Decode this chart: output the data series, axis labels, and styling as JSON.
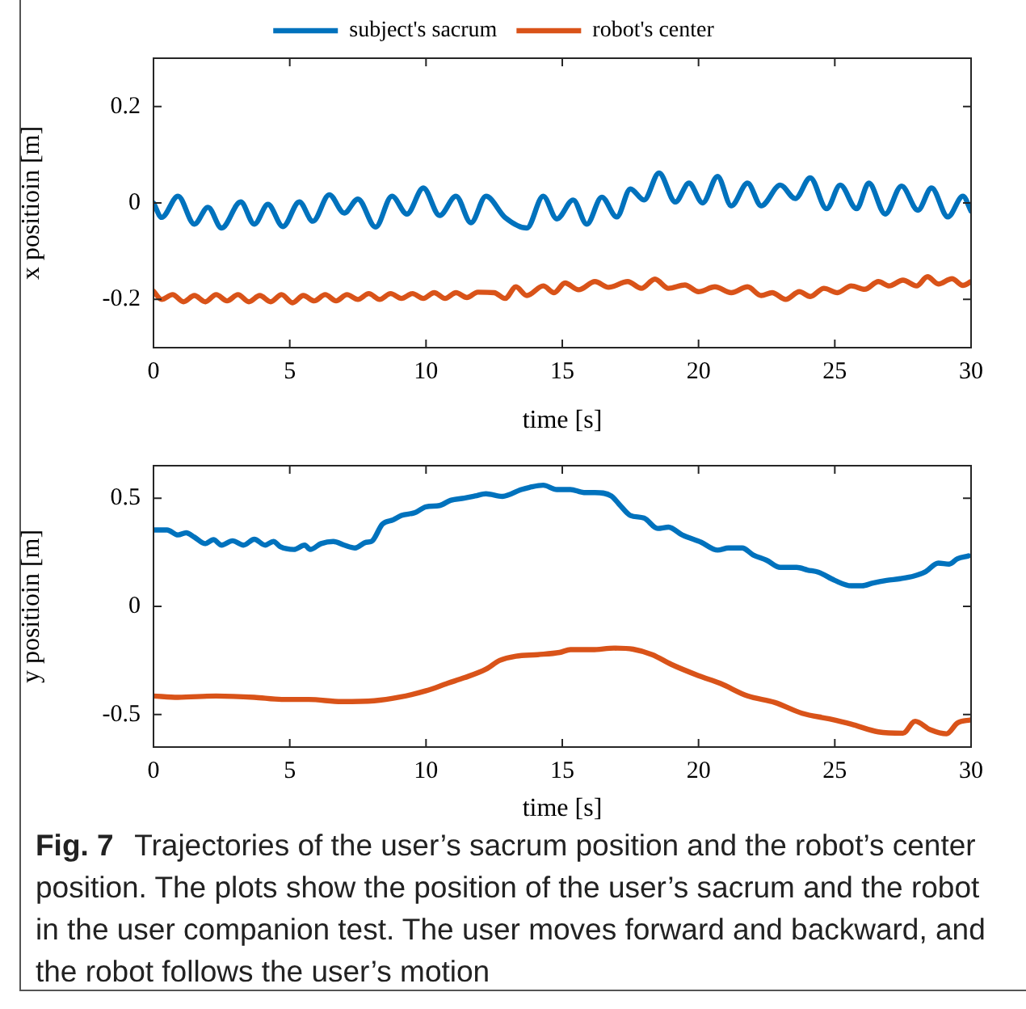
{
  "chart_data": [
    {
      "type": "line",
      "xlabel": "time [s]",
      "ylabel": "x positioin [m]",
      "xlim": [
        0,
        30
      ],
      "xticks": [
        0,
        5,
        10,
        15,
        20,
        25,
        30
      ],
      "ylim": [
        -0.3,
        0.3
      ],
      "yticks": [
        -0.2,
        0,
        0.2
      ],
      "grid": false,
      "legend": "top",
      "marker": "none",
      "line_style": "solid",
      "series": [
        {
          "name": "subject's sacrum",
          "color": "#0072bd",
          "x": [
            0,
            0.3,
            0.9,
            1.5,
            2.0,
            2.5,
            3.2,
            3.7,
            4.2,
            4.75,
            5.35,
            5.85,
            6.45,
            7.0,
            7.5,
            8.15,
            8.75,
            9.3,
            9.9,
            10.5,
            11.1,
            11.65,
            12.2,
            12.9,
            13.7,
            14.3,
            14.8,
            15.4,
            15.9,
            16.45,
            17.0,
            17.5,
            18.0,
            18.55,
            19.15,
            19.65,
            20.15,
            20.7,
            21.2,
            21.8,
            22.3,
            23.0,
            23.55,
            24.1,
            24.7,
            25.2,
            25.8,
            26.25,
            26.85,
            27.45,
            28.05,
            28.55,
            29.15,
            29.7,
            30
          ],
          "values": [
            0,
            -0.03,
            0.014,
            -0.044,
            -0.009,
            -0.052,
            0.002,
            -0.044,
            -0.003,
            -0.049,
            0.002,
            -0.038,
            0.017,
            -0.021,
            0.008,
            -0.05,
            0.014,
            -0.023,
            0.031,
            -0.026,
            0.014,
            -0.041,
            0.014,
            -0.03,
            -0.052,
            0.014,
            -0.033,
            0.006,
            -0.044,
            0.012,
            -0.029,
            0.029,
            0.006,
            0.062,
            0.002,
            0.041,
            0,
            0.055,
            -0.006,
            0.041,
            -0.006,
            0.037,
            0.009,
            0.052,
            -0.012,
            0.037,
            -0.012,
            0.041,
            -0.023,
            0.035,
            -0.015,
            0.031,
            -0.029,
            0.014,
            -0.017
          ]
        },
        {
          "name": "robot's center",
          "color": "#d95319",
          "x": [
            0,
            0.3,
            0.7,
            1.1,
            1.5,
            1.9,
            2.3,
            2.7,
            3.1,
            3.5,
            3.9,
            4.3,
            4.7,
            5.1,
            5.5,
            5.9,
            6.3,
            6.7,
            7.1,
            7.5,
            7.9,
            8.3,
            8.7,
            9.1,
            9.5,
            9.9,
            10.3,
            10.7,
            11.1,
            11.5,
            11.9,
            12.5,
            12.9,
            13.3,
            13.7,
            14.3,
            14.7,
            15.1,
            15.6,
            16.2,
            16.7,
            17.4,
            17.9,
            18.4,
            18.9,
            19.5,
            20.0,
            20.6,
            21.2,
            21.8,
            22.3,
            22.7,
            23.2,
            23.7,
            24.1,
            24.6,
            25.1,
            25.6,
            26.1,
            26.6,
            27.0,
            27.5,
            28.0,
            28.4,
            28.8,
            29.3,
            29.7,
            30
          ],
          "values": [
            -0.183,
            -0.2,
            -0.19,
            -0.205,
            -0.192,
            -0.205,
            -0.19,
            -0.203,
            -0.19,
            -0.205,
            -0.192,
            -0.205,
            -0.19,
            -0.207,
            -0.192,
            -0.203,
            -0.19,
            -0.203,
            -0.19,
            -0.2,
            -0.188,
            -0.2,
            -0.188,
            -0.198,
            -0.188,
            -0.198,
            -0.186,
            -0.198,
            -0.186,
            -0.196,
            -0.185,
            -0.186,
            -0.198,
            -0.174,
            -0.192,
            -0.172,
            -0.186,
            -0.166,
            -0.18,
            -0.163,
            -0.175,
            -0.163,
            -0.177,
            -0.158,
            -0.177,
            -0.17,
            -0.184,
            -0.174,
            -0.186,
            -0.174,
            -0.192,
            -0.186,
            -0.2,
            -0.184,
            -0.194,
            -0.177,
            -0.186,
            -0.172,
            -0.179,
            -0.163,
            -0.172,
            -0.16,
            -0.172,
            -0.153,
            -0.168,
            -0.157,
            -0.171,
            -0.163
          ]
        }
      ]
    },
    {
      "type": "line",
      "xlabel": "time [s]",
      "ylabel": "y positioin [m]",
      "xlim": [
        0,
        30
      ],
      "xticks": [
        0,
        5,
        10,
        15,
        20,
        25,
        30
      ],
      "ylim": [
        -0.65,
        0.65
      ],
      "yticks": [
        -0.5,
        0,
        0.5
      ],
      "grid": false,
      "marker": "none",
      "line_style": "solid",
      "annotations": [
        "Fig. 7",
        "Trajectories of the user’s sacrum position and the robot’s center position. The plots show the position of the user’s sacrum and the robot in the user companion test. The user moves forward and backward, and the robot follows the user’s motion"
      ],
      "series": [
        {
          "color": "#0072bd",
          "x": [
            0,
            0.5,
            0.9,
            1.2,
            1.5,
            1.9,
            2.2,
            2.5,
            2.9,
            3.3,
            3.7,
            4.1,
            4.4,
            4.65,
            5.15,
            5.55,
            5.75,
            6.15,
            6.6,
            7.0,
            7.4,
            7.8,
            8.0,
            8.4,
            8.8,
            9.1,
            9.6,
            10.0,
            10.5,
            10.9,
            11.4,
            11.8,
            12.2,
            12.8,
            13.5,
            13.8,
            14.3,
            14.8,
            15.3,
            15.8,
            16.2,
            16.8,
            17.1,
            17.5,
            18.0,
            18.5,
            18.9,
            19.4,
            20.1,
            20.7,
            21.1,
            21.6,
            22.0,
            22.5,
            23.0,
            23.6,
            24.0,
            24.4,
            25.0,
            25.6,
            26.0,
            26.4,
            26.9,
            27.4,
            27.9,
            28.3,
            28.8,
            29.2,
            29.5,
            29.9
          ],
          "values": [
            0.353,
            0.353,
            0.33,
            0.34,
            0.32,
            0.29,
            0.308,
            0.283,
            0.303,
            0.283,
            0.31,
            0.283,
            0.3,
            0.276,
            0.263,
            0.283,
            0.263,
            0.29,
            0.3,
            0.283,
            0.27,
            0.296,
            0.3,
            0.38,
            0.4,
            0.42,
            0.433,
            0.46,
            0.466,
            0.49,
            0.5,
            0.51,
            0.52,
            0.508,
            0.54,
            0.55,
            0.56,
            0.54,
            0.54,
            0.526,
            0.526,
            0.51,
            0.47,
            0.42,
            0.408,
            0.36,
            0.366,
            0.33,
            0.296,
            0.26,
            0.27,
            0.27,
            0.238,
            0.213,
            0.18,
            0.18,
            0.168,
            0.158,
            0.12,
            0.095,
            0.095,
            0.108,
            0.12,
            0.128,
            0.14,
            0.158,
            0.2,
            0.195,
            0.22,
            0.233
          ]
        },
        {
          "color": "#d95319",
          "x": [
            0,
            0.9,
            2.3,
            3.7,
            4.7,
            5.7,
            6.9,
            8.1,
            9.0,
            10.0,
            10.8,
            11.4,
            12.2,
            12.7,
            13.3,
            14.1,
            14.9,
            15.3,
            16.1,
            16.9,
            17.6,
            18.3,
            19.0,
            20.0,
            20.8,
            21.8,
            22.8,
            23.8,
            24.8,
            25.6,
            26.6,
            27.5,
            27.95,
            28.5,
            29.1,
            29.5,
            30
          ],
          "values": [
            -0.414,
            -0.42,
            -0.414,
            -0.42,
            -0.43,
            -0.43,
            -0.44,
            -0.436,
            -0.42,
            -0.39,
            -0.355,
            -0.33,
            -0.29,
            -0.25,
            -0.23,
            -0.223,
            -0.213,
            -0.2,
            -0.2,
            -0.193,
            -0.198,
            -0.223,
            -0.268,
            -0.32,
            -0.356,
            -0.414,
            -0.444,
            -0.494,
            -0.52,
            -0.544,
            -0.58,
            -0.586,
            -0.531,
            -0.57,
            -0.589,
            -0.539,
            -0.524
          ]
        }
      ]
    }
  ]
}
